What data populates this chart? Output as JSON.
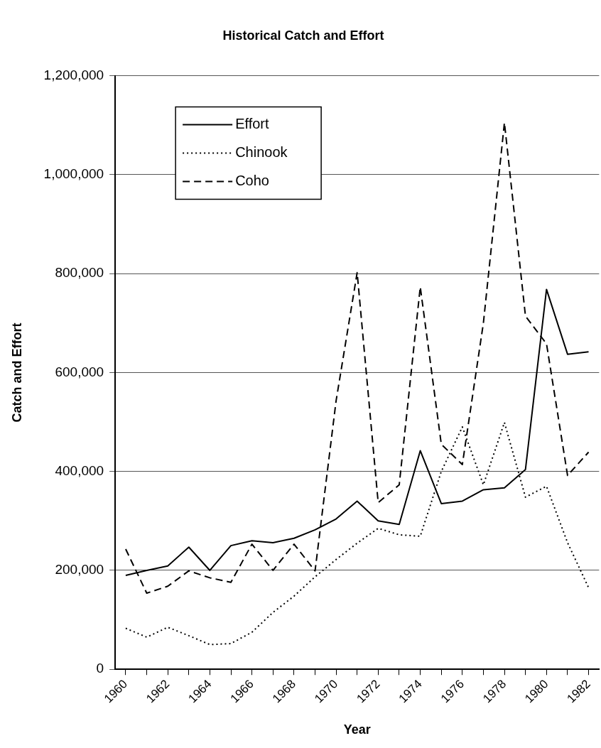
{
  "chart_data": {
    "type": "line",
    "title": "Historical Catch and Effort",
    "xlabel": "Year",
    "ylabel": "Catch and Effort",
    "categories": [
      "1960",
      null,
      "1962",
      null,
      "1964",
      null,
      "1966",
      null,
      "1968",
      null,
      "1970",
      null,
      "1972",
      null,
      "1974",
      null,
      "1976",
      null,
      "1978",
      null,
      "1980",
      null,
      "1982"
    ],
    "series": [
      {
        "name": "Effort",
        "color": "#000000",
        "line_style": "solid",
        "values": [
          190000,
          200000,
          209000,
          247000,
          200000,
          250000,
          260000,
          256000,
          265000,
          282000,
          304000,
          340000,
          300000,
          293000,
          442000,
          335000,
          340000,
          363000,
          367000,
          404000,
          768000,
          637000,
          642000
        ]
      },
      {
        "name": "Chinook",
        "color": "#000000",
        "line_style": "dotted",
        "values": [
          83000,
          65000,
          85000,
          68000,
          50000,
          52000,
          75000,
          115000,
          148000,
          187000,
          222000,
          255000,
          285000,
          272000,
          269000,
          400000,
          490000,
          373000,
          499000,
          348000,
          370000,
          256000,
          165000
        ]
      },
      {
        "name": "Coho",
        "color": "#000000",
        "line_style": "dashed",
        "values": [
          243000,
          154000,
          168000,
          199000,
          185000,
          176000,
          253000,
          200000,
          253000,
          199000,
          543000,
          802000,
          337000,
          373000,
          773000,
          455000,
          414000,
          700000,
          1105000,
          714000,
          658000,
          392000,
          439000
        ]
      }
    ],
    "ylim": [
      0,
      1200000
    ],
    "yticks": [
      0,
      {
        "value": 200000,
        "label": "200,000"
      },
      {
        "value": 400000,
        "label": "400,000"
      },
      {
        "value": 600000,
        "label": "600,000"
      },
      {
        "value": 800000,
        "label": "800,000"
      },
      {
        "value": 1000000,
        "label": "1,000,000"
      },
      {
        "value": 1200000,
        "label": "1,200,000"
      }
    ],
    "grid": "y",
    "legend": "top left",
    "marker": "none"
  }
}
